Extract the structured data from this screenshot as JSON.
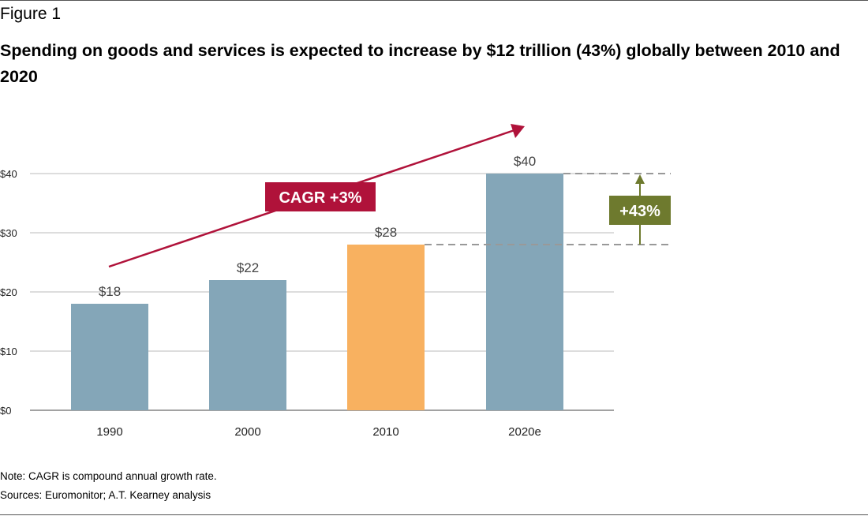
{
  "header": {
    "figure_label": "Figure 1",
    "title": "Spending on goods and services is expected to increase by $12 trillion (43%) globally between 2010 and 2020"
  },
  "chart_data": {
    "type": "bar",
    "categories": [
      "1990",
      "2000",
      "2010",
      "2020e"
    ],
    "values": [
      18,
      22,
      28,
      40
    ],
    "value_labels": [
      "$18",
      "$22",
      "$28",
      "$40"
    ],
    "bar_colors": [
      "#84a6b8",
      "#84a6b8",
      "#f8b160",
      "#84a6b8"
    ],
    "y_ticks": [
      0,
      10,
      20,
      30,
      40
    ],
    "y_tick_labels": [
      "$0",
      "$10",
      "$20",
      "$30",
      "$40"
    ],
    "ylim": [
      0,
      40
    ],
    "grid": true,
    "annotations": {
      "cagr_label": "CAGR +3%",
      "cagr_color": "#b0123a",
      "growth_label": "+43%",
      "growth_color": "#6e7a2e",
      "growth_from": 28,
      "growth_to": 40
    }
  },
  "footer": {
    "note": "Note: CAGR is compound annual growth rate.",
    "sources": "Sources: Euromonitor; A.T. Kearney analysis"
  }
}
